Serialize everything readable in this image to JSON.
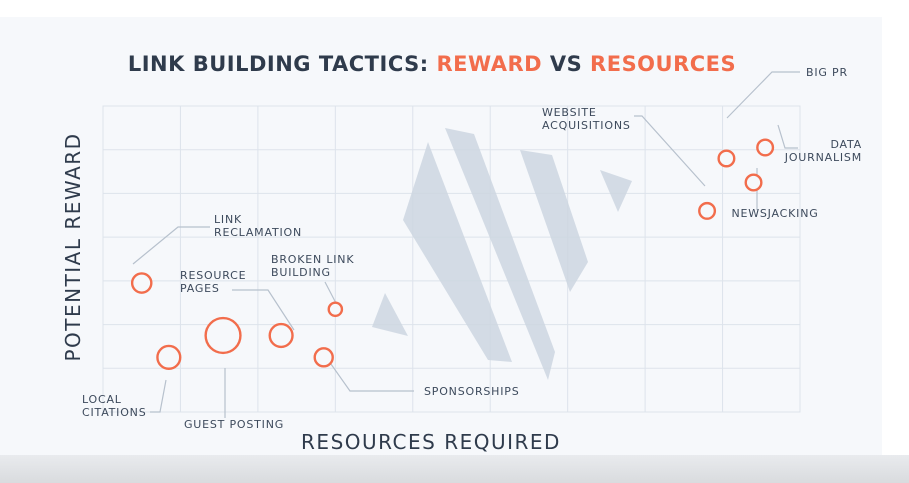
{
  "chart_data": {
    "type": "scatter",
    "title_parts": [
      {
        "text": "LINK BUILDING TACTICS: ",
        "color": "#2f3b4c"
      },
      {
        "text": "REWARD",
        "color": "#f26d4c"
      },
      {
        "text": " VS ",
        "color": "#2f3b4c"
      },
      {
        "text": "RESOURCES",
        "color": "#f26d4c"
      }
    ],
    "xlabel": "RESOURCES REQUIRED",
    "ylabel": "POTENTIAL REWARD",
    "xlim": [
      0,
      9
    ],
    "ylim": [
      0,
      7
    ],
    "grid": true,
    "points": [
      {
        "label": [
          "LINK",
          "RECLAMATION"
        ],
        "x": 0.5,
        "y": 2.95,
        "size": 1.6
      },
      {
        "label": [
          "RESOURCE",
          "PAGES"
        ],
        "x": 2.3,
        "y": 1.75,
        "size": 1.9
      },
      {
        "label": [
          "BROKEN LINK",
          "BUILDING"
        ],
        "x": 3.0,
        "y": 2.35,
        "size": 1.1
      },
      {
        "label": [
          "SPONSORSHIPS"
        ],
        "x": 2.85,
        "y": 1.25,
        "size": 1.5
      },
      {
        "label": [
          "GUEST POSTING"
        ],
        "x": 1.55,
        "y": 1.75,
        "size": 2.9
      },
      {
        "label": [
          "LOCAL",
          "CITATIONS"
        ],
        "x": 0.85,
        "y": 1.25,
        "size": 1.9
      },
      {
        "label": [
          "WEBSITE",
          "ACQUISITIONS"
        ],
        "x": 7.8,
        "y": 4.6,
        "size": 1.3
      },
      {
        "label": [
          "BIG PR"
        ],
        "x": 8.05,
        "y": 5.8,
        "size": 1.3
      },
      {
        "label": [
          "DATA",
          "JOURNALISM"
        ],
        "x": 8.55,
        "y": 6.05,
        "size": 1.3
      },
      {
        "label": [
          "NEWSJACKING"
        ],
        "x": 8.4,
        "y": 5.25,
        "size": 1.3
      }
    ]
  },
  "colors": {
    "accent": "#f26d4c",
    "text": "#2f3b4c",
    "grid": "#dde3eb",
    "stripes": "#cdd6e1",
    "leader": "#b7c1cd"
  }
}
